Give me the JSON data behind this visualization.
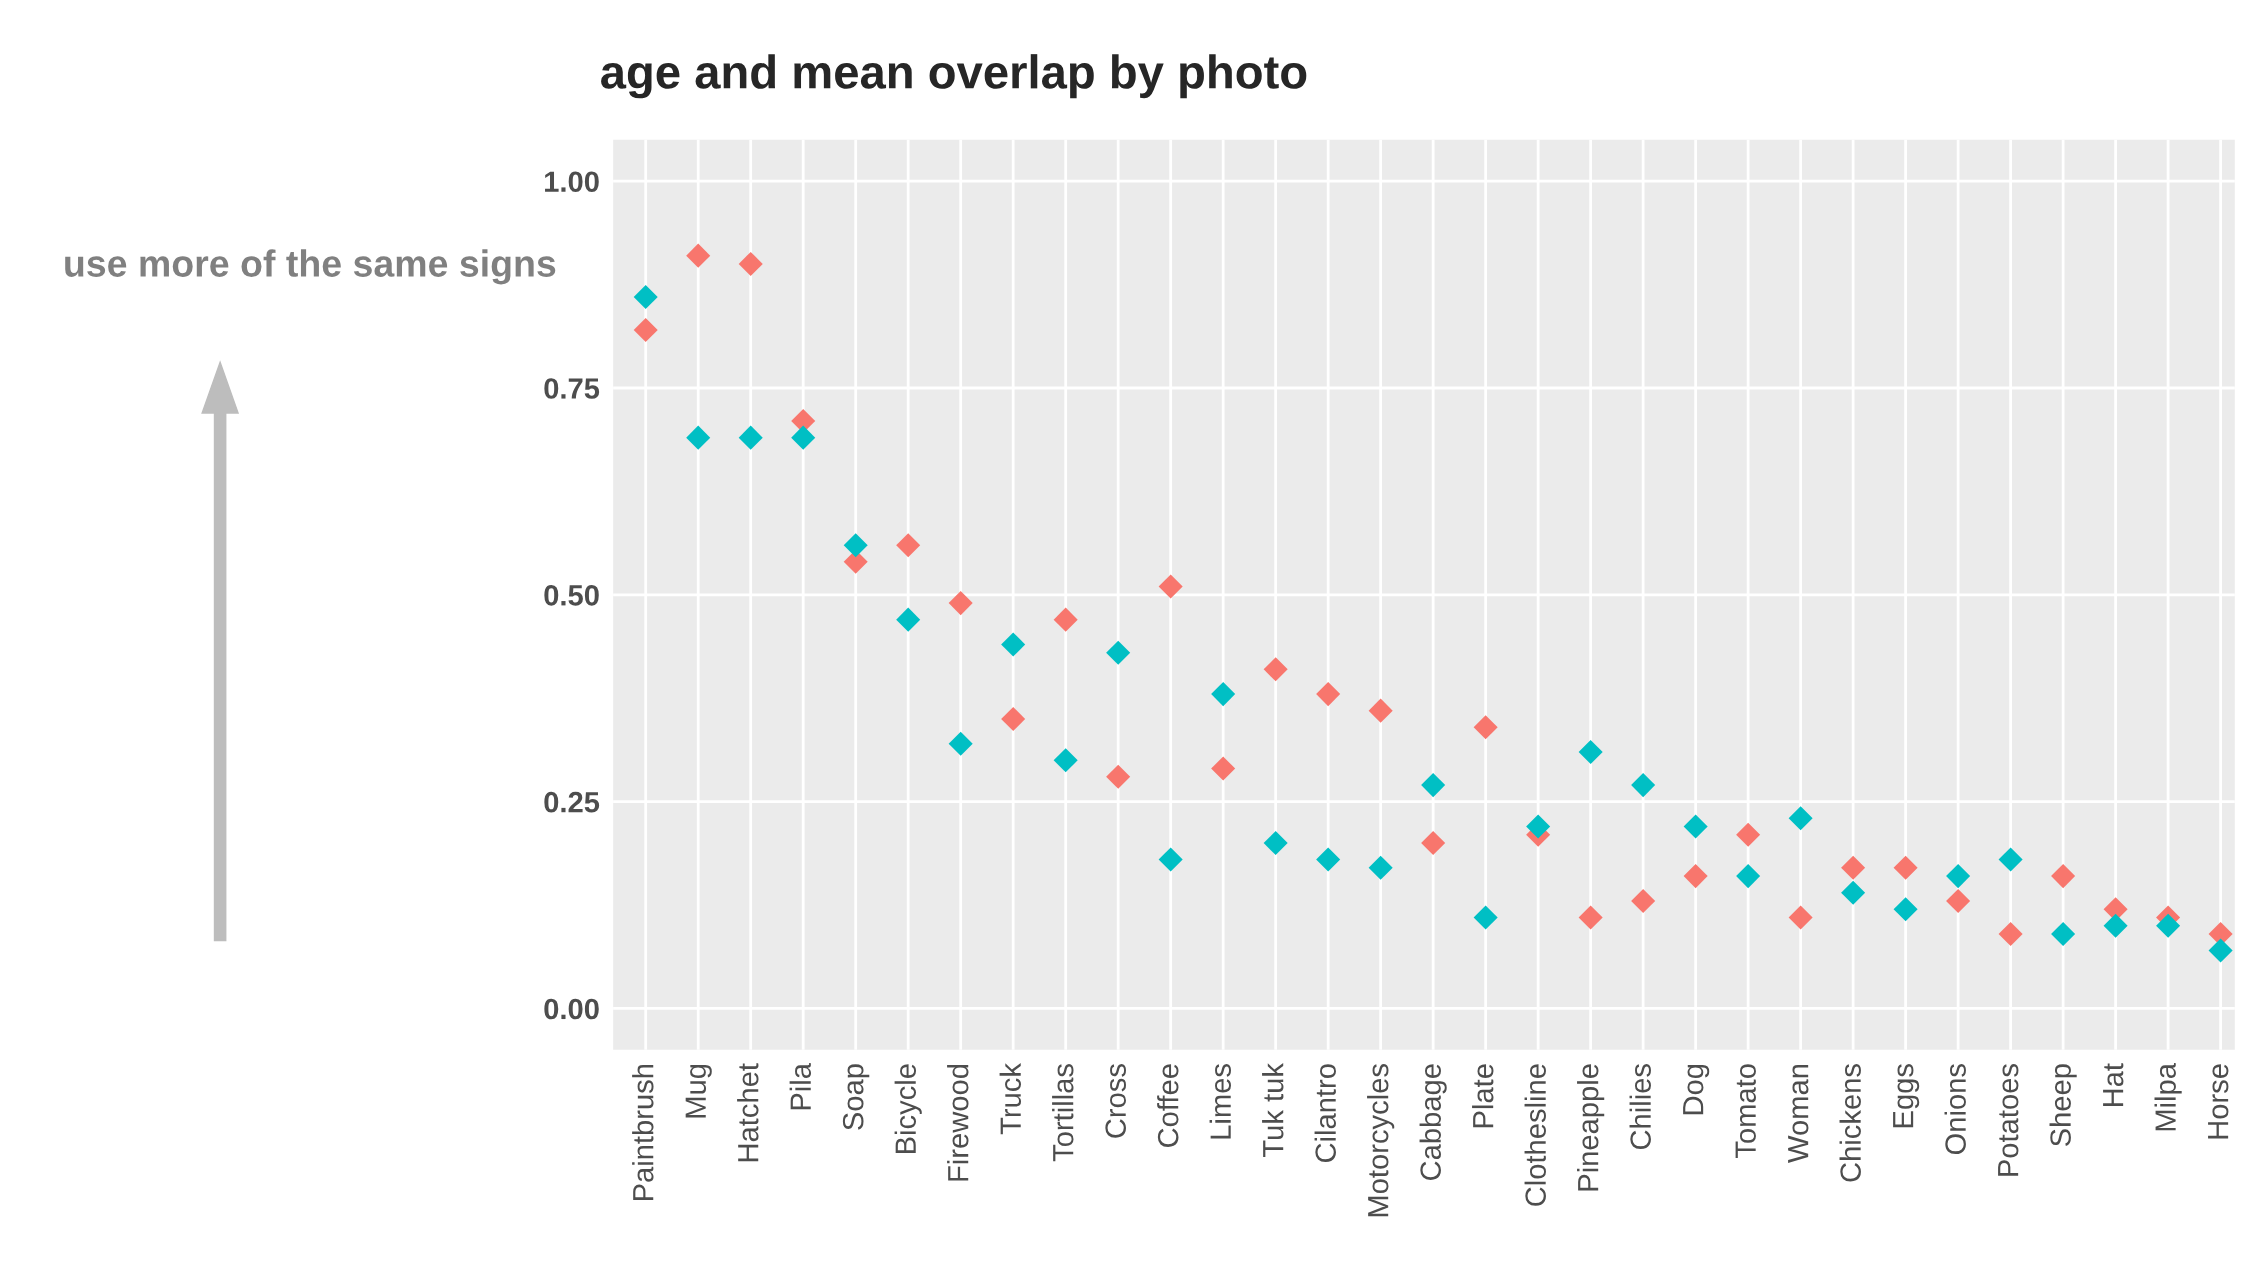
{
  "chart_data": {
    "type": "scatter",
    "title": "age and mean overlap by photo",
    "categories": [
      "Paintbrush",
      "Mug",
      "Hatchet",
      "Pila",
      "Soap",
      "Bicycle",
      "Firewood",
      "Truck",
      "Tortillas",
      "Cross",
      "Coffee",
      "Limes",
      "Tuk tuk",
      "Cilantro",
      "Motorcycles",
      "Cabbage",
      "Plate",
      "Clothesline",
      "Pineapple",
      "Chilies",
      "Dog",
      "Tomato",
      "Woman",
      "Chickens",
      "Eggs",
      "Onions",
      "Potatoes",
      "Sheep",
      "Hat",
      "Milpa",
      "Horse"
    ],
    "series": [
      {
        "color": "#f8766d",
        "values": [
          0.82,
          0.91,
          0.9,
          0.71,
          0.54,
          0.56,
          0.49,
          0.35,
          0.47,
          0.28,
          0.51,
          0.29,
          0.41,
          0.38,
          0.36,
          0.2,
          0.34,
          0.21,
          0.11,
          0.13,
          0.16,
          0.21,
          0.11,
          0.17,
          0.17,
          0.13,
          0.09,
          0.16,
          0.12,
          0.11,
          0.09
        ]
      },
      {
        "color": "#00bfc4",
        "values": [
          0.86,
          0.69,
          0.69,
          0.69,
          0.56,
          0.47,
          0.32,
          0.44,
          0.3,
          0.43,
          0.18,
          0.38,
          0.2,
          0.18,
          0.17,
          0.27,
          0.11,
          0.22,
          0.31,
          0.27,
          0.22,
          0.16,
          0.23,
          0.14,
          0.12,
          0.16,
          0.18,
          0.09,
          0.1,
          0.1,
          0.07
        ]
      }
    ],
    "ylim": [
      -0.05,
      1.05
    ],
    "yticks": [
      {
        "value": 0,
        "label": "0.00"
      },
      {
        "value": 0.25,
        "label": "0.25"
      },
      {
        "value": 0.5,
        "label": "0.50"
      },
      {
        "value": 0.75,
        "label": "0.75"
      },
      {
        "value": 1,
        "label": "1.00"
      }
    ],
    "grid": true,
    "legend": false,
    "marker": "diamond",
    "annotations": [
      "use more of the same signs"
    ]
  }
}
